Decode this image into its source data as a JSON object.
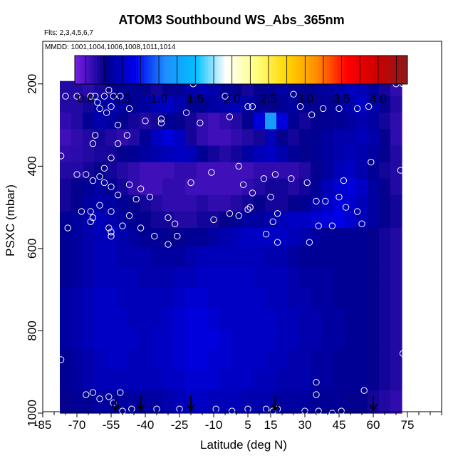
{
  "chart_data": {
    "type": "heatmap",
    "title": "ATOM3 Southbound WS_Abs_365nm",
    "annotations": {
      "flights": "Flts: 2,3,4,5,6,7",
      "dates": "MMDD: 1001,1004,1006,1008,1011,1014"
    },
    "xlabel": "Latitude (deg N)",
    "ylabel": "PSXC (mbar)",
    "xlim": [
      -85,
      90
    ],
    "ylim": [
      1000,
      100
    ],
    "y_reversed": true,
    "x_ticks": [
      -85,
      -70,
      -55,
      -40,
      -25,
      -10,
      5,
      15,
      30,
      45,
      60,
      75
    ],
    "y_ticks": [
      200,
      400,
      600,
      800,
      1000
    ],
    "colorbar": {
      "min": -0.15,
      "max": 4.4,
      "ticks": [
        0.0,
        0.5,
        1.0,
        1.5,
        2.0,
        2.5,
        3.0,
        3.5,
        4.0
      ],
      "colors": [
        "#7a1fe6",
        "#00008b",
        "#0000ee",
        "#1e90ff",
        "#00bfff",
        "#ffffff",
        "#ffff80",
        "#ffd700",
        "#ff8c00",
        "#ff0000",
        "#cd0000",
        "#8b1a1a"
      ]
    },
    "arrows_latitude": [
      -53,
      -42,
      -20,
      17,
      60
    ],
    "values_grid": {
      "latitudes": [
        -75,
        -70,
        -65,
        -60,
        -55,
        -50,
        -45,
        -40,
        -35,
        -30,
        -25,
        -20,
        -15,
        -10,
        -5,
        0,
        5,
        10,
        15,
        20,
        25,
        30,
        35,
        40,
        45,
        50,
        55,
        60,
        65,
        70
      ],
      "pressures": [
        210,
        250,
        290,
        330,
        370,
        410,
        450,
        490,
        530,
        570,
        620,
        670,
        720,
        770,
        820,
        870,
        920,
        970
      ],
      "values": [
        [
          0.15,
          0.15,
          0.12,
          0.18,
          0.25,
          0.3,
          0.3,
          0.25,
          0.2,
          0.25,
          0.3,
          0.4,
          0.45,
          0.4,
          0.3,
          0.25,
          0.2,
          0.25,
          0.3,
          0.35,
          0.3,
          0.25,
          0.3,
          0.35,
          0.4,
          0.5,
          0.45,
          0.35,
          0.2,
          0.1
        ],
        [
          0.15,
          0.15,
          0.2,
          0.35,
          0.4,
          0.35,
          0.3,
          0.35,
          0.45,
          0.5,
          0.4,
          0.3,
          0.3,
          0.35,
          0.4,
          0.45,
          0.35,
          0.3,
          0.25,
          0.3,
          0.35,
          0.3,
          0.25,
          0.3,
          0.35,
          0.4,
          0.5,
          0.4,
          0.25,
          0.15
        ],
        [
          0.1,
          0.15,
          0.3,
          0.4,
          0.35,
          0.25,
          0.2,
          0.15,
          0.2,
          0.3,
          0.25,
          0.2,
          0.1,
          0.05,
          0.1,
          0.15,
          0.25,
          0.6,
          1.2,
          0.6,
          0.3,
          0.2,
          0.25,
          0.3,
          0.3,
          0.35,
          0.4,
          0.35,
          0.2,
          0.1
        ],
        [
          0.05,
          0.1,
          0.15,
          0.2,
          0.15,
          0.1,
          0.15,
          0.3,
          0.5,
          0.6,
          0.5,
          0.2,
          0.1,
          0.05,
          0.05,
          0.1,
          0.15,
          0.2,
          0.45,
          0.25,
          0.2,
          0.25,
          0.3,
          0.35,
          0.4,
          0.4,
          0.45,
          0.4,
          0.25,
          0.1
        ],
        [
          0.1,
          0.12,
          0.15,
          0.18,
          0.2,
          0.25,
          0.3,
          0.35,
          0.4,
          0.45,
          0.5,
          0.45,
          0.3,
          0.2,
          0.15,
          0.2,
          0.35,
          0.45,
          0.5,
          0.4,
          0.3,
          0.25,
          0.3,
          0.35,
          0.4,
          0.45,
          0.4,
          0.35,
          0.25,
          0.15
        ],
        [
          0.15,
          0.15,
          0.2,
          0.25,
          0.2,
          0.15,
          0.1,
          0.05,
          0.05,
          0.05,
          0.1,
          0.1,
          0.05,
          0.05,
          0.05,
          0.05,
          0.05,
          0.1,
          0.1,
          0.1,
          0.1,
          0.15,
          0.25,
          0.35,
          0.45,
          0.5,
          0.4,
          0.3,
          0.2,
          0.15
        ],
        [
          0.2,
          0.25,
          0.3,
          0.35,
          0.3,
          0.2,
          0.1,
          0.05,
          0.05,
          0.1,
          0.1,
          0.05,
          0.05,
          0.05,
          0.05,
          0.05,
          0.1,
          0.15,
          0.2,
          0.2,
          0.15,
          0.2,
          0.3,
          0.45,
          0.55,
          0.6,
          0.5,
          0.35,
          0.25,
          0.15
        ],
        [
          0.2,
          0.25,
          0.35,
          0.4,
          0.35,
          0.3,
          0.25,
          0.2,
          0.15,
          0.1,
          0.1,
          0.1,
          0.15,
          0.1,
          0.1,
          0.15,
          0.2,
          0.25,
          0.2,
          0.2,
          0.25,
          0.3,
          0.4,
          0.5,
          0.6,
          0.55,
          0.45,
          0.35,
          0.25,
          0.2
        ],
        [
          0.3,
          0.35,
          0.4,
          0.45,
          0.4,
          0.35,
          0.3,
          0.25,
          0.2,
          0.2,
          0.15,
          0.15,
          0.2,
          0.2,
          0.25,
          0.3,
          0.35,
          0.35,
          0.4,
          0.45,
          0.5,
          0.5,
          0.55,
          0.6,
          0.65,
          0.55,
          0.45,
          0.35,
          0.25,
          0.2
        ],
        [
          0.3,
          0.35,
          0.4,
          0.45,
          0.45,
          0.4,
          0.35,
          0.3,
          0.3,
          0.25,
          0.25,
          0.3,
          0.3,
          0.35,
          0.4,
          0.45,
          0.5,
          0.5,
          0.5,
          0.5,
          0.45,
          0.4,
          0.35,
          0.3,
          0.3,
          0.3,
          0.3,
          0.25,
          0.2,
          0.15
        ],
        [
          0.3,
          0.35,
          0.4,
          0.45,
          0.45,
          0.4,
          0.4,
          0.4,
          0.35,
          0.35,
          0.35,
          0.4,
          0.45,
          0.45,
          0.45,
          0.45,
          0.45,
          0.45,
          0.4,
          0.4,
          0.35,
          0.3,
          0.3,
          0.3,
          0.3,
          0.3,
          0.3,
          0.25,
          0.2,
          0.15
        ],
        [
          0.3,
          0.35,
          0.4,
          0.45,
          0.45,
          0.45,
          0.45,
          0.4,
          0.4,
          0.4,
          0.45,
          0.45,
          0.5,
          0.5,
          0.5,
          0.5,
          0.5,
          0.45,
          0.45,
          0.45,
          0.4,
          0.35,
          0.35,
          0.35,
          0.3,
          0.3,
          0.3,
          0.25,
          0.2,
          0.15
        ],
        [
          0.35,
          0.4,
          0.45,
          0.5,
          0.5,
          0.45,
          0.45,
          0.45,
          0.45,
          0.45,
          0.5,
          0.55,
          0.55,
          0.5,
          0.5,
          0.5,
          0.5,
          0.5,
          0.45,
          0.45,
          0.4,
          0.4,
          0.35,
          0.35,
          0.3,
          0.3,
          0.3,
          0.25,
          0.2,
          0.15
        ],
        [
          0.35,
          0.4,
          0.45,
          0.5,
          0.5,
          0.5,
          0.45,
          0.45,
          0.45,
          0.5,
          0.55,
          0.6,
          0.6,
          0.55,
          0.5,
          0.5,
          0.5,
          0.5,
          0.5,
          0.45,
          0.45,
          0.4,
          0.4,
          0.35,
          0.35,
          0.3,
          0.3,
          0.25,
          0.2,
          0.15
        ],
        [
          0.35,
          0.4,
          0.45,
          0.5,
          0.5,
          0.5,
          0.5,
          0.45,
          0.5,
          0.5,
          0.55,
          0.6,
          0.6,
          0.6,
          0.55,
          0.5,
          0.5,
          0.5,
          0.5,
          0.45,
          0.45,
          0.4,
          0.4,
          0.35,
          0.35,
          0.3,
          0.3,
          0.25,
          0.2,
          0.15
        ],
        [
          0.3,
          0.35,
          0.4,
          0.45,
          0.5,
          0.5,
          0.45,
          0.45,
          0.5,
          0.5,
          0.55,
          0.6,
          0.6,
          0.55,
          0.55,
          0.5,
          0.5,
          0.5,
          0.45,
          0.45,
          0.4,
          0.4,
          0.35,
          0.35,
          0.3,
          0.3,
          0.3,
          0.25,
          0.2,
          0.15
        ],
        [
          0.3,
          0.35,
          0.4,
          0.45,
          0.45,
          0.45,
          0.45,
          0.45,
          0.45,
          0.5,
          0.5,
          0.55,
          0.55,
          0.55,
          0.5,
          0.5,
          0.5,
          0.45,
          0.45,
          0.4,
          0.4,
          0.4,
          0.35,
          0.35,
          0.3,
          0.3,
          0.3,
          0.25,
          0.2,
          0.15
        ],
        [
          0.25,
          0.3,
          0.3,
          0.35,
          0.35,
          0.35,
          0.35,
          0.35,
          0.35,
          0.4,
          0.45,
          0.5,
          0.5,
          0.45,
          0.45,
          0.45,
          0.4,
          0.4,
          0.4,
          0.35,
          0.35,
          0.35,
          0.3,
          0.3,
          0.3,
          0.25,
          0.25,
          0.2,
          0.15,
          0.1
        ]
      ]
    },
    "observation_points": [
      {
        "lat": -75,
        "p": 230
      },
      {
        "lat": -70,
        "p": 230
      },
      {
        "lat": -64,
        "p": 230
      },
      {
        "lat": -62,
        "p": 230
      },
      {
        "lat": -61,
        "p": 245
      },
      {
        "lat": -60,
        "p": 260
      },
      {
        "lat": -58,
        "p": 230
      },
      {
        "lat": -56,
        "p": 215
      },
      {
        "lat": -54,
        "p": 230
      },
      {
        "lat": -51,
        "p": 230
      },
      {
        "lat": -55,
        "p": 255
      },
      {
        "lat": -57,
        "p": 270
      },
      {
        "lat": -47,
        "p": 260
      },
      {
        "lat": -40,
        "p": 290
      },
      {
        "lat": -33,
        "p": 295
      },
      {
        "lat": -19,
        "p": 200
      },
      {
        "lat": -5,
        "p": 230
      },
      {
        "lat": 5,
        "p": 255
      },
      {
        "lat": 7,
        "p": 255
      },
      {
        "lat": 25,
        "p": 225
      },
      {
        "lat": 28,
        "p": 255
      },
      {
        "lat": 33,
        "p": 275
      },
      {
        "lat": 38,
        "p": 260
      },
      {
        "lat": 45,
        "p": 260
      },
      {
        "lat": 53,
        "p": 260
      },
      {
        "lat": 58,
        "p": 255
      },
      {
        "lat": 70,
        "p": 200
      },
      {
        "lat": 73,
        "p": 200
      },
      {
        "lat": -22,
        "p": 270
      },
      {
        "lat": -16,
        "p": 295
      },
      {
        "lat": -3,
        "p": 280
      },
      {
        "lat": -33,
        "p": 285
      },
      {
        "lat": -52,
        "p": 300
      },
      {
        "lat": -48,
        "p": 325
      },
      {
        "lat": -52,
        "p": 345
      },
      {
        "lat": -62,
        "p": 325
      },
      {
        "lat": -77,
        "p": 375
      },
      {
        "lat": -63,
        "p": 345
      },
      {
        "lat": -55,
        "p": 380
      },
      {
        "lat": -58,
        "p": 405
      },
      {
        "lat": -66,
        "p": 420
      },
      {
        "lat": -63,
        "p": 435
      },
      {
        "lat": -70,
        "p": 420
      },
      {
        "lat": -60,
        "p": 425
      },
      {
        "lat": -58,
        "p": 440
      },
      {
        "lat": -47,
        "p": 445
      },
      {
        "lat": -42,
        "p": 455
      },
      {
        "lat": -44,
        "p": 480
      },
      {
        "lat": -55,
        "p": 450
      },
      {
        "lat": -52,
        "p": 470
      },
      {
        "lat": -38,
        "p": 475
      },
      {
        "lat": -20,
        "p": 440
      },
      {
        "lat": -11,
        "p": 415
      },
      {
        "lat": 1,
        "p": 400
      },
      {
        "lat": 3,
        "p": 445
      },
      {
        "lat": 7,
        "p": 465
      },
      {
        "lat": 12,
        "p": 430
      },
      {
        "lat": 17,
        "p": 420
      },
      {
        "lat": 24,
        "p": 430
      },
      {
        "lat": 31,
        "p": 440
      },
      {
        "lat": 47,
        "p": 435
      },
      {
        "lat": 59,
        "p": 390
      },
      {
        "lat": 72,
        "p": 410
      },
      {
        "lat": -64,
        "p": 510
      },
      {
        "lat": -68,
        "p": 510
      },
      {
        "lat": -63,
        "p": 525
      },
      {
        "lat": -64,
        "p": 535
      },
      {
        "lat": -60,
        "p": 495
      },
      {
        "lat": -55,
        "p": 510
      },
      {
        "lat": -47,
        "p": 520
      },
      {
        "lat": -50,
        "p": 545
      },
      {
        "lat": -42,
        "p": 550
      },
      {
        "lat": -30,
        "p": 525
      },
      {
        "lat": -27,
        "p": 540
      },
      {
        "lat": -10,
        "p": 530
      },
      {
        "lat": -3,
        "p": 515
      },
      {
        "lat": 5,
        "p": 505
      },
      {
        "lat": 6,
        "p": 500
      },
      {
        "lat": 1,
        "p": 520
      },
      {
        "lat": 15,
        "p": 475
      },
      {
        "lat": 18,
        "p": 515
      },
      {
        "lat": 16,
        "p": 535
      },
      {
        "lat": 35,
        "p": 485
      },
      {
        "lat": 39,
        "p": 485
      },
      {
        "lat": 45,
        "p": 475
      },
      {
        "lat": 48,
        "p": 500
      },
      {
        "lat": 36,
        "p": 545
      },
      {
        "lat": 42,
        "p": 545
      },
      {
        "lat": 53,
        "p": 510
      },
      {
        "lat": 55,
        "p": 540
      },
      {
        "lat": -74,
        "p": 550
      },
      {
        "lat": -56,
        "p": 550
      },
      {
        "lat": -55,
        "p": 560
      },
      {
        "lat": -55,
        "p": 570
      },
      {
        "lat": -36,
        "p": 570
      },
      {
        "lat": -26,
        "p": 570
      },
      {
        "lat": -30,
        "p": 590
      },
      {
        "lat": 13,
        "p": 565
      },
      {
        "lat": 18,
        "p": 585
      },
      {
        "lat": 32,
        "p": 585
      },
      {
        "lat": -77,
        "p": 870
      },
      {
        "lat": 73,
        "p": 855
      },
      {
        "lat": 35,
        "p": 925
      },
      {
        "lat": 56,
        "p": 945
      },
      {
        "lat": 35,
        "p": 955
      },
      {
        "lat": -66,
        "p": 955
      },
      {
        "lat": -63,
        "p": 950
      },
      {
        "lat": -60,
        "p": 965
      },
      {
        "lat": -56,
        "p": 960
      },
      {
        "lat": -51,
        "p": 950
      },
      {
        "lat": -54,
        "p": 975
      },
      {
        "lat": -50,
        "p": 995
      },
      {
        "lat": -46,
        "p": 990
      },
      {
        "lat": -35,
        "p": 990
      },
      {
        "lat": -25,
        "p": 990
      },
      {
        "lat": -9,
        "p": 990
      },
      {
        "lat": -2,
        "p": 995
      },
      {
        "lat": 5,
        "p": 990
      },
      {
        "lat": 13,
        "p": 990
      },
      {
        "lat": 16,
        "p": 995
      },
      {
        "lat": 18,
        "p": 990
      },
      {
        "lat": 30,
        "p": 995
      },
      {
        "lat": 36,
        "p": 995
      },
      {
        "lat": 42,
        "p": 1000
      },
      {
        "lat": 46,
        "p": 995
      }
    ]
  }
}
